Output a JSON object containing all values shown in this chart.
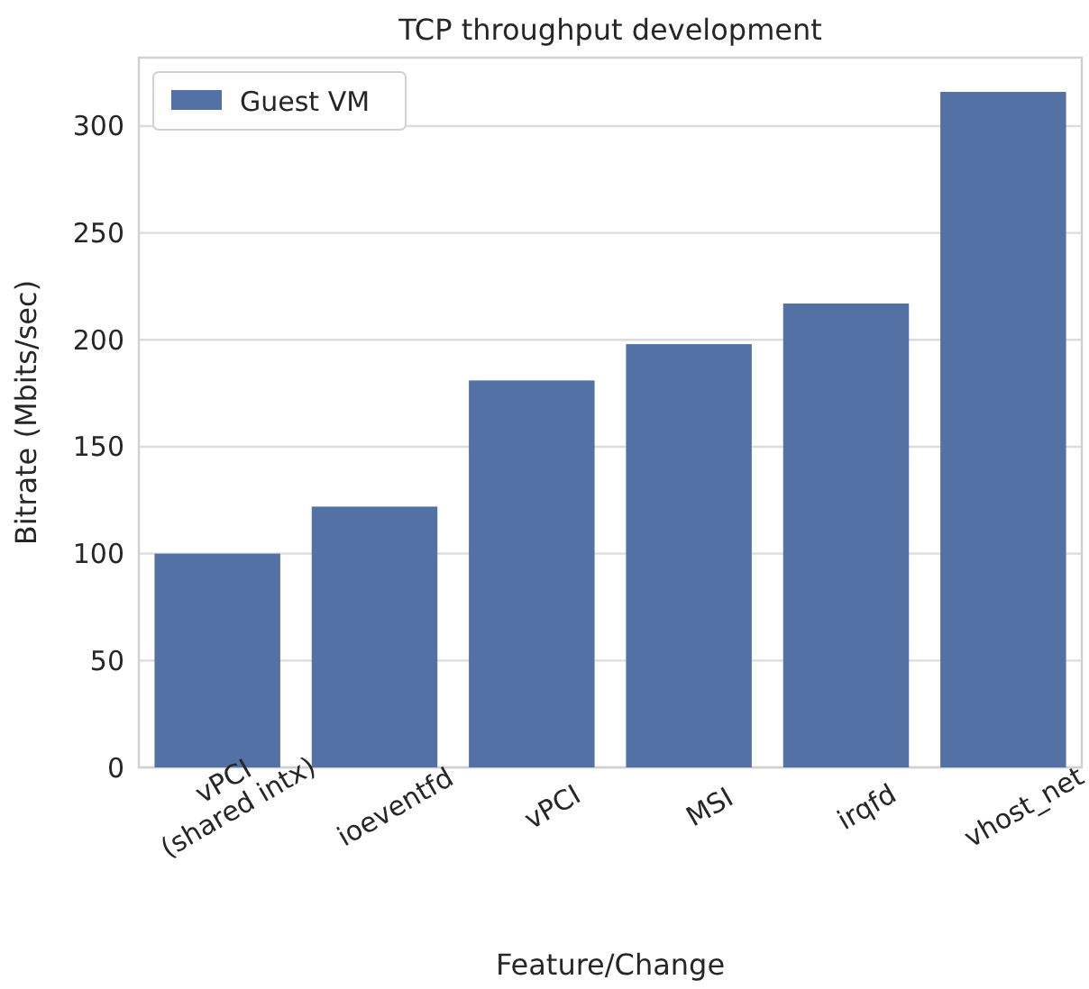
{
  "chart_data": {
    "type": "bar",
    "title": "TCP throughput development",
    "xlabel": "Feature/Change",
    "ylabel": "Bitrate (Mbits/sec)",
    "categories": [
      "vPCI\n(shared intx)",
      "ioeventfd",
      "vPCI",
      "MSI",
      "irqfd",
      "vhost_net"
    ],
    "series": [
      {
        "name": "Guest VM",
        "color": "#5471a5",
        "values": [
          100,
          122,
          181,
          198,
          217,
          316
        ]
      }
    ],
    "ylim": [
      0,
      332
    ],
    "yticks": [
      0,
      50,
      100,
      150,
      200,
      250,
      300
    ],
    "grid": "y",
    "legend": "top left"
  }
}
